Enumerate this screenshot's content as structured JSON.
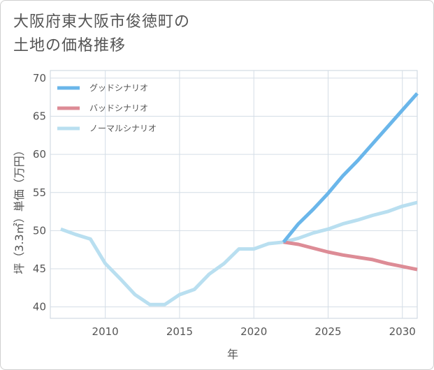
{
  "title_lines": [
    "大阪府東大阪市俊徳町の",
    "土地の価格推移"
  ],
  "chart_data": {
    "type": "line",
    "xlabel": "年",
    "ylabel": "坪（3.3㎡）単価（万円）",
    "xlim": [
      2006.3,
      2031
    ],
    "ylim": [
      38.5,
      71
    ],
    "x_ticks": [
      2010,
      2015,
      2020,
      2025,
      2030
    ],
    "y_ticks": [
      40,
      45,
      50,
      55,
      60,
      65,
      70
    ],
    "grid": true,
    "legend_position": "top-left",
    "series": [
      {
        "name": "グッドシナリオ",
        "color": "#6ab6ea",
        "x": [
          2022,
          2023,
          2024,
          2025,
          2026,
          2027,
          2028,
          2029,
          2030,
          2031
        ],
        "y": [
          48.5,
          50.9,
          52.8,
          54.9,
          57.2,
          59.2,
          61.4,
          63.6,
          65.8,
          68.0
        ]
      },
      {
        "name": "バッドシナリオ",
        "color": "#dd8c96",
        "x": [
          2022,
          2023,
          2024,
          2025,
          2026,
          2027,
          2028,
          2029,
          2030,
          2031
        ],
        "y": [
          48.5,
          48.2,
          47.7,
          47.2,
          46.8,
          46.5,
          46.2,
          45.7,
          45.3,
          44.9
        ]
      },
      {
        "name": "ノーマルシナリオ",
        "color": "#b9dff0",
        "x": [
          2007,
          2008,
          2009,
          2010,
          2011,
          2012,
          2013,
          2014,
          2015,
          2016,
          2017,
          2018,
          2019,
          2020,
          2021,
          2022,
          2023,
          2024,
          2025,
          2026,
          2027,
          2028,
          2029,
          2030,
          2031
        ],
        "y": [
          50.2,
          49.5,
          48.9,
          45.7,
          43.7,
          41.6,
          40.3,
          40.3,
          41.6,
          42.3,
          44.3,
          45.7,
          47.6,
          47.6,
          48.3,
          48.5,
          49.0,
          49.7,
          50.2,
          50.9,
          51.4,
          52.0,
          52.5,
          53.2,
          53.7
        ]
      }
    ]
  }
}
